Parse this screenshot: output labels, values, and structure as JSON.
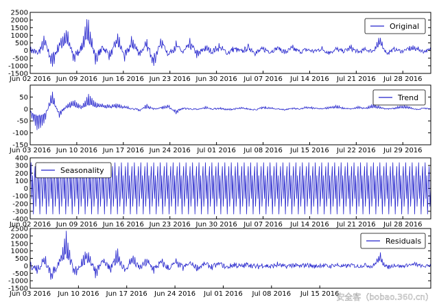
{
  "chart_data": [
    {
      "type": "line",
      "legend": "Original",
      "legend_position": "top-right",
      "ylim": [
        -1500,
        2500
      ],
      "yticks": [
        -1500,
        -1000,
        -500,
        0,
        500,
        1000,
        1500,
        2000,
        2500
      ],
      "xticks": [
        "Jun 02 2016",
        "Jun 09 2016",
        "Jun 16 2016",
        "Jun 23 2016",
        "Jun 30 2016",
        "Jul 07 2016",
        "Jul 14 2016",
        "Jul 21 2016",
        "Jul 28 2016"
      ],
      "series": [
        {
          "name": "Original",
          "values": [
            120,
            -350,
            900,
            -1200,
            600,
            1500,
            -800,
            300,
            2300,
            -1000,
            400,
            -600,
            1200,
            -700,
            900,
            -300,
            600,
            -1100,
            1000,
            -400,
            500,
            -200,
            700,
            -500,
            300,
            -100,
            400,
            -300,
            200,
            -150,
            350,
            -250,
            150,
            -100,
            300,
            -200,
            250,
            -150,
            100,
            -100,
            200,
            -250,
            150,
            -100,
            300,
            -200,
            100,
            -80,
            950,
            -300,
            150,
            -100,
            200,
            250,
            -120,
            100
          ]
        }
      ]
    },
    {
      "type": "line",
      "legend": "Trend",
      "legend_position": "top-right",
      "ylim": [
        -150,
        100
      ],
      "yticks": [
        -150,
        -100,
        -50,
        0,
        50
      ],
      "xticks": [
        "Jun 03 2016",
        "Jun 10 2016",
        "Jun 17 2016",
        "Jun 24 2016",
        "Jul 01 2016",
        "Jul 08 2016",
        "Jul 15 2016",
        "Jul 22 2016",
        "Jul 29 2016"
      ],
      "series": [
        {
          "name": "Trend",
          "values": [
            -20,
            -90,
            -60,
            80,
            -40,
            20,
            40,
            10,
            60,
            30,
            20,
            15,
            25,
            10,
            5,
            -10,
            20,
            0,
            10,
            15,
            -20,
            5,
            0,
            -5,
            10,
            0,
            5,
            -5,
            0,
            5,
            0,
            -5,
            10,
            5,
            0,
            -5,
            5,
            0,
            10,
            5,
            0,
            10,
            15,
            5,
            0,
            10,
            5,
            20,
            10,
            0,
            5,
            15,
            10,
            -5,
            5,
            0
          ]
        }
      ]
    },
    {
      "type": "line",
      "legend": "Seasonality",
      "legend_position": "top-left",
      "ylim": [
        -400,
        400
      ],
      "yticks": [
        -400,
        -300,
        -200,
        -100,
        0,
        100,
        200,
        300,
        400
      ],
      "xticks": [
        "Jun 02 2016",
        "Jun 09 2016",
        "Jun 16 2016",
        "Jun 23 2016",
        "Jun 30 2016",
        "Jul 07 2016",
        "Jul 14 2016",
        "Jul 21 2016",
        "Jul 28 2016"
      ],
      "series": [
        {
          "name": "Seasonality",
          "period_days": 1,
          "amplitude": 340,
          "values": [
            0,
            320,
            -250,
            150,
            -330,
            60,
            280,
            -200,
            -100,
            340,
            -300,
            0
          ]
        }
      ]
    },
    {
      "type": "line",
      "legend": "Residuals",
      "legend_position": "top-right",
      "ylim": [
        -1500,
        2500
      ],
      "yticks": [
        -1500,
        -1000,
        -500,
        0,
        500,
        1000,
        1500,
        2000,
        2500
      ],
      "xticks": [
        "Jun 03 2016",
        "Jun 10 2016",
        "Jun 17 2016",
        "Jun 24 2016",
        "Jul 01 2016",
        "Jul 08 2016",
        "Jul 15 2016"
      ],
      "series": [
        {
          "name": "Residuals",
          "values": [
            100,
            -400,
            800,
            -1100,
            500,
            2300,
            -900,
            300,
            1100,
            -700,
            600,
            -500,
            1200,
            -600,
            800,
            -300,
            500,
            -400,
            400,
            -300,
            350,
            -200,
            300,
            -250,
            200,
            -150,
            250,
            -200,
            150,
            -100,
            200,
            -150,
            100,
            -100,
            150,
            -120,
            100,
            -80,
            150,
            -100,
            100,
            -80,
            120,
            -100,
            80,
            -60,
            100,
            -80,
            900,
            -200,
            100,
            -80,
            120,
            150,
            -90,
            60
          ]
        }
      ]
    }
  ],
  "watermark": "安全客（bobao.360.cn）"
}
